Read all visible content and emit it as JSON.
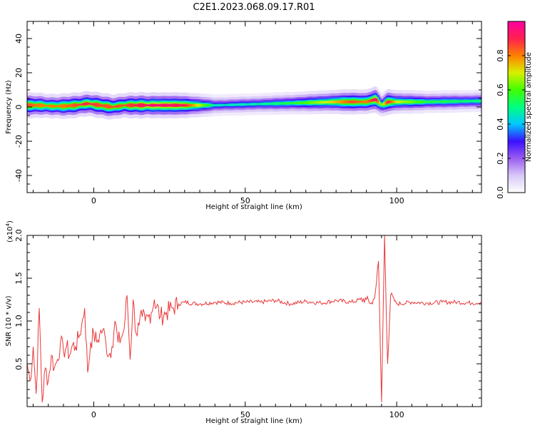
{
  "title": "C2E1.2023.068.09.17.R01",
  "colors": {
    "line": "#e8393a",
    "axis": "#000000"
  },
  "chart_data": [
    {
      "type": "heatmap",
      "xlabel": "Height of straight line (km)",
      "ylabel": "Frequency (Hz)",
      "xlim": [
        -22,
        128
      ],
      "ylim": [
        -50,
        50
      ],
      "xticks": [
        0,
        50,
        100
      ],
      "yticks": [
        -40,
        -20,
        0,
        20,
        40
      ],
      "colorbar": {
        "label": "Normalized spectral amplitude",
        "range": [
          0,
          1
        ],
        "ticks": [
          "0.0",
          "0.2",
          "0.4",
          "0.6",
          "0.8"
        ],
        "colormap": [
          "#ffffff",
          "#d8c8f8",
          "#9b5cf0",
          "#3a10ff",
          "#00c8ff",
          "#00ff80",
          "#40ff00",
          "#d8f000",
          "#ff8000",
          "#ff2050",
          "#ff00a0"
        ]
      },
      "ridge": {
        "x": [
          -22,
          -18,
          -14,
          -10,
          -6,
          -2,
          2,
          6,
          10,
          15,
          20,
          30,
          40,
          50,
          60,
          70,
          80,
          85,
          90,
          93,
          95,
          97,
          100,
          110,
          128
        ],
        "freq": [
          1,
          1,
          0.5,
          0.5,
          1,
          2,
          1,
          0,
          1,
          1,
          1,
          1,
          1,
          1.5,
          2,
          2.5,
          3,
          3,
          3,
          4.5,
          1,
          3,
          3,
          3,
          3.5
        ],
        "amp": [
          0.85,
          0.8,
          0.8,
          0.8,
          0.85,
          0.9,
          0.85,
          0.85,
          0.85,
          0.9,
          0.95,
          0.9,
          0.45,
          0.45,
          0.5,
          0.6,
          0.75,
          0.85,
          0.8,
          0.95,
          0.6,
          0.9,
          0.7,
          0.55,
          0.5
        ]
      }
    },
    {
      "type": "line",
      "xlabel": "Height of straight line (km)",
      "ylabel": "SNR (10 * v/v)",
      "y_multiplier": "(x10",
      "y_exponent": "4",
      "y_multiplier_close": ")",
      "xlim": [
        -22,
        128
      ],
      "ylim": [
        0,
        2.0
      ],
      "xticks": [
        0,
        50,
        100
      ],
      "yticks": [
        "0.5",
        "1.0",
        "1.5",
        "2.0"
      ],
      "series": [
        {
          "x": [
            -22,
            -21,
            -20,
            -19,
            -18,
            -17,
            -16,
            -15,
            -14,
            -13,
            -12,
            -11,
            -10,
            -9,
            -8,
            -7,
            -6,
            -5,
            -4,
            -3,
            -2,
            -1,
            0,
            1,
            2,
            3,
            4,
            5,
            6,
            7,
            8,
            9,
            10,
            11,
            12,
            13,
            14,
            15,
            16,
            17,
            18,
            19,
            20,
            22,
            24,
            26,
            28,
            30,
            35,
            40,
            45,
            50,
            55,
            60,
            65,
            70,
            75,
            80,
            85,
            88,
            90,
            92,
            93,
            94,
            95,
            96,
            97,
            98,
            100,
            105,
            110,
            115,
            120,
            125,
            128
          ],
          "y": [
            0.5,
            0.3,
            0.7,
            0.15,
            1.15,
            0.05,
            0.45,
            0.3,
            0.6,
            0.45,
            0.55,
            0.75,
            0.65,
            0.7,
            0.6,
            0.72,
            0.7,
            0.8,
            0.95,
            1.15,
            0.4,
            0.75,
            0.85,
            0.75,
            0.85,
            0.9,
            0.75,
            0.6,
            0.7,
            1.0,
            0.75,
            0.8,
            0.9,
            1.3,
            0.55,
            1.25,
            0.85,
            0.95,
            1.05,
            1.0,
            1.05,
            1.1,
            1.25,
            1.05,
            1.1,
            1.15,
            1.2,
            1.22,
            1.2,
            1.22,
            1.21,
            1.22,
            1.22,
            1.24,
            1.2,
            1.23,
            1.21,
            1.24,
            1.22,
            1.25,
            1.25,
            1.2,
            1.35,
            1.7,
            0.05,
            2.0,
            0.5,
            1.3,
            1.2,
            1.22,
            1.21,
            1.22,
            1.22,
            1.21,
            1.22
          ]
        }
      ]
    }
  ]
}
